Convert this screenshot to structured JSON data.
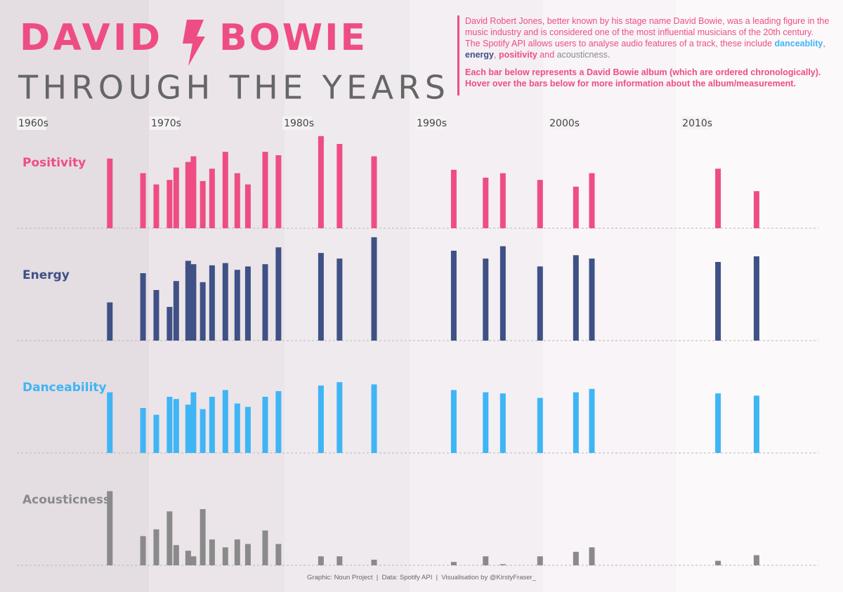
{
  "header": {
    "title_first": "DAVID",
    "title_second": "BOWIE",
    "subtitle": "THROUGH THE YEARS",
    "intro": [
      "David Robert Jones, better known by his stage name David Bowie, was a leading figure in the music industry and is considered one of the most influential musicians of the 20th century. The Spotify API allows users to analyse audio features of a track, these include ",
      "danceablity",
      ", ",
      "energy",
      ", ",
      "positivity",
      " and ",
      "acousticness",
      "."
    ],
    "note": "Each bar below represents a David Bowie album (which are ordered chronologically). Hover over the bars below for more information about the album/measurement."
  },
  "footer": "Graphic: Noun Project  |  Data: Spotify API  |  Visualisation by @KirstyFraser_",
  "chart_data": {
    "type": "bar",
    "x": [
      1967.0,
      1969.5,
      1970.5,
      1971.5,
      1972.0,
      1972.9,
      1973.3,
      1974.0,
      1974.7,
      1975.7,
      1976.6,
      1977.4,
      1978.7,
      1979.7,
      1982.9,
      1984.3,
      1986.9,
      1992.9,
      1995.3,
      1996.6,
      1999.4,
      2002.1,
      2003.3,
      2012.8,
      2015.7
    ],
    "xlim": [
      1960,
      2022
    ],
    "xticks": [
      {
        "value": 1960,
        "label": "1960s"
      },
      {
        "value": 1970,
        "label": "1970s"
      },
      {
        "value": 1980,
        "label": "1980s"
      },
      {
        "value": 1990,
        "label": "1990s"
      },
      {
        "value": 2000,
        "label": "2000s"
      },
      {
        "value": 2010,
        "label": "2010s"
      }
    ],
    "ylim": [
      0,
      1
    ],
    "series": [
      {
        "name": "Positivity",
        "color": "#ee4d83",
        "values": [
          0.62,
          0.49,
          0.39,
          0.43,
          0.54,
          0.59,
          0.64,
          0.42,
          0.53,
          0.68,
          0.49,
          0.39,
          0.68,
          0.65,
          0.82,
          0.75,
          0.64,
          0.52,
          0.45,
          0.49,
          0.43,
          0.37,
          0.49,
          0.53,
          0.33
        ]
      },
      {
        "name": "Energy",
        "color": "#3f5185",
        "values": [
          0.34,
          0.6,
          0.45,
          0.3,
          0.53,
          0.71,
          0.68,
          0.52,
          0.67,
          0.69,
          0.63,
          0.66,
          0.68,
          0.83,
          0.78,
          0.73,
          0.92,
          0.8,
          0.73,
          0.84,
          0.66,
          0.76,
          0.73,
          0.7,
          0.75
        ]
      },
      {
        "name": "Danceability",
        "color": "#3fb5f5",
        "values": [
          0.54,
          0.4,
          0.34,
          0.5,
          0.48,
          0.43,
          0.54,
          0.39,
          0.5,
          0.56,
          0.44,
          0.41,
          0.5,
          0.55,
          0.6,
          0.63,
          0.61,
          0.56,
          0.54,
          0.53,
          0.49,
          0.54,
          0.57,
          0.53,
          0.51
        ]
      },
      {
        "name": "Acousticness",
        "color": "#8a8a8a",
        "values": [
          0.66,
          0.26,
          0.32,
          0.48,
          0.18,
          0.13,
          0.08,
          0.5,
          0.23,
          0.16,
          0.23,
          0.19,
          0.31,
          0.19,
          0.08,
          0.08,
          0.05,
          0.03,
          0.08,
          0.01,
          0.08,
          0.12,
          0.16,
          0.04,
          0.09
        ]
      }
    ]
  }
}
